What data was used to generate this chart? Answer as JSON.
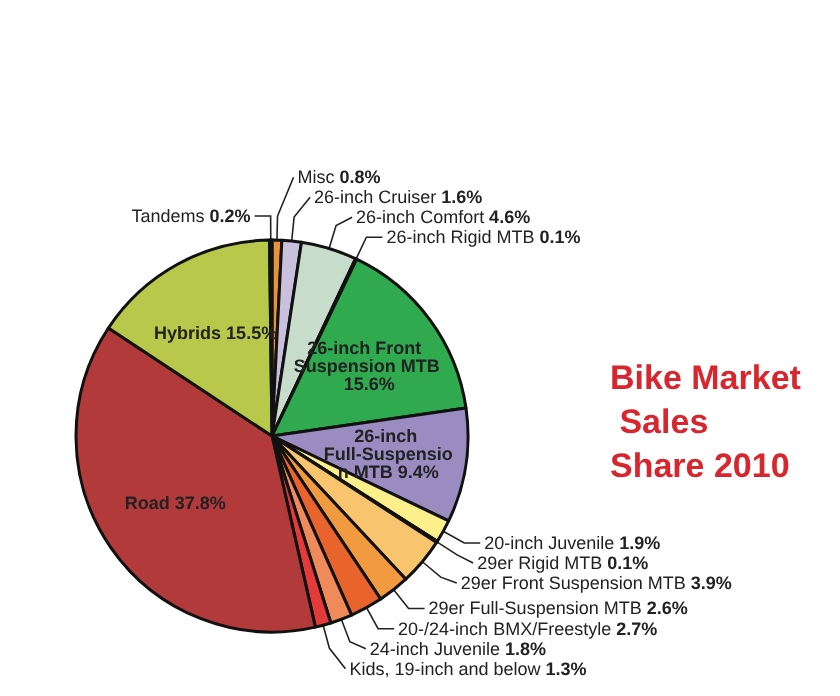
{
  "chart_data": {
    "type": "pie",
    "title": "Bike Market Sales Share 2010",
    "categories": [
      "Misc",
      "26-inch Cruiser",
      "26-inch Comfort",
      "26-inch Rigid MTB",
      "26-inch Front Suspension MTB",
      "26-inch Full-Suspension MTB",
      "20-inch Juvenile",
      "29er Rigid MTB",
      "29er Front Suspension MTB",
      "29er Full-Suspension MTB",
      "20-/24-inch BMX/Freestyle",
      "24-inch Juvenile",
      "Kids, 19-inch and below",
      "Road",
      "Hybrids",
      "Tandems"
    ],
    "values": [
      0.8,
      1.6,
      4.6,
      0.1,
      15.6,
      9.4,
      1.9,
      0.1,
      3.9,
      2.6,
      2.7,
      1.8,
      1.3,
      37.8,
      15.5,
      0.2
    ],
    "value_labels": [
      "0.8%",
      "1.6%",
      "4.6%",
      "0.1%",
      "15.6%",
      "9.4%",
      "1.9%",
      "0.1%",
      "3.9%",
      "2.6%",
      "2.7%",
      "1.8%",
      "1.3%",
      "37.8%",
      "15.5%",
      "0.2%"
    ],
    "colors": [
      "#e8923a",
      "#c8c0dc",
      "#c8dccb",
      "#1f7a3a",
      "#2faa4f",
      "#9a8cc0",
      "#fdf08a",
      "#f6d878",
      "#f9c46e",
      "#f29a3f",
      "#e8642c",
      "#ef8a5a",
      "#e33a3a",
      "#b23a3a",
      "#b8c84a",
      "#2a2a2a"
    ],
    "legend": false
  }
}
